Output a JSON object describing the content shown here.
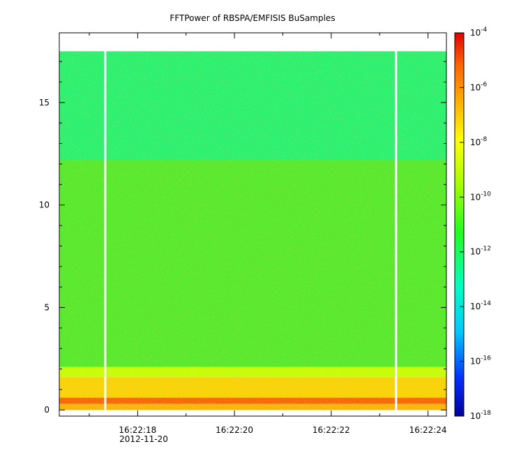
{
  "chart_data": {
    "type": "heatmap",
    "title": "FFTPower of RBSPA/EMFISIS  BuSamples",
    "xlabel": "",
    "ylabel": "",
    "x_date_label": "2012-11-20",
    "x_ticks": [
      "16:22:18",
      "16:22:20",
      "16:22:22",
      "16:22:24"
    ],
    "x_range": [
      "16:22:16.38",
      "16:22:24.38"
    ],
    "y_ticks": [
      0,
      5,
      10,
      15
    ],
    "ylim": [
      -0.3,
      18.4
    ],
    "colorbar": {
      "scale": "log",
      "range": [
        1e-18,
        0.0001
      ],
      "tick_exponents": [
        -4,
        -6,
        -8,
        -10,
        -12,
        -14,
        -16,
        -18
      ],
      "tick_base": "10",
      "colors": [
        "#0000a0",
        "#0030ff",
        "#00c8ff",
        "#00ffc0",
        "#20ff20",
        "#a0ff00",
        "#ffff00",
        "#ffb000",
        "#ff6000",
        "#e00000"
      ]
    },
    "bands": [
      {
        "y_from": 0.0,
        "y_to": 0.3,
        "power": "1e-7",
        "color": "#ffb000"
      },
      {
        "y_from": 0.3,
        "y_to": 0.6,
        "power": "1e-6",
        "color": "#ff5a00"
      },
      {
        "y_from": 0.6,
        "y_to": 1.6,
        "power": "1e-8",
        "color": "#ffd000"
      },
      {
        "y_from": 1.6,
        "y_to": 2.1,
        "power": "1e-9",
        "color": "#c8ff00"
      },
      {
        "y_from": 2.1,
        "y_to": 12.2,
        "power": "1e-10",
        "color": "#50e828"
      },
      {
        "y_from": 12.2,
        "y_to": 17.5,
        "power": "1e-12",
        "color": "#20f070"
      }
    ],
    "data_gaps": [
      "16:22:17.33",
      "16:22:23.34"
    ],
    "grid": false
  }
}
